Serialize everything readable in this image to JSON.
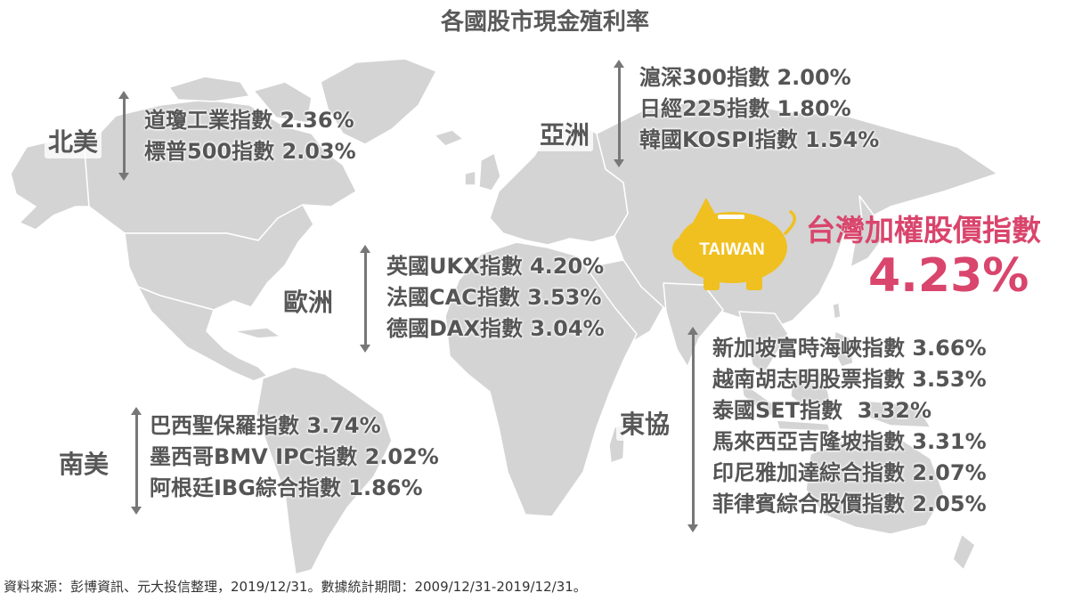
{
  "title": "各國股市現金殖利率",
  "regions": {
    "north_america": {
      "label": "北美",
      "items": [
        {
          "text": "道瓊工業指數 2.36%"
        },
        {
          "text": "標普500指數 2.03%"
        }
      ]
    },
    "asia": {
      "label": "亞洲",
      "items": [
        {
          "text": "滬深300指數 2.00%"
        },
        {
          "text": "日經225指數 1.80%"
        },
        {
          "text": "韓國KOSPI指數 1.54%"
        }
      ]
    },
    "europe": {
      "label": "歐洲",
      "items": [
        {
          "text": "英國UKX指數 4.20%"
        },
        {
          "text": "法國CAC指數 3.53%"
        },
        {
          "text": "德國DAX指數 3.04%"
        }
      ]
    },
    "south_america": {
      "label": "南美",
      "items": [
        {
          "text": "巴西聖保羅指數 3.74%"
        },
        {
          "text": "墨西哥BMV IPC指數 2.02%"
        },
        {
          "text": "阿根廷IBG綜合指數 1.86%"
        }
      ]
    },
    "asean": {
      "label": "東協",
      "items": [
        {
          "text": "新加坡富時海峽指數 3.66%"
        },
        {
          "text": "越南胡志明股票指數 3.53%"
        },
        {
          "text": "泰國SET指數  3.32%"
        },
        {
          "text": "馬來西亞吉隆坡指數 3.31%"
        },
        {
          "text": "印尼雅加達綜合指數 2.07%"
        },
        {
          "text": "菲律賓綜合股價指數 2.05%"
        }
      ]
    }
  },
  "taiwan": {
    "badge": "TAIWAN",
    "name": "台灣加權股價指數",
    "value": "4.23%"
  },
  "source": "資料來源：彭博資訊、元大投信整理，2019/12/31。數據統計期間：2009/12/31-2019/12/31。",
  "colors": {
    "land": "#d4d4d4",
    "land_border": "#ffffff",
    "text": "#555555",
    "accent": "#d9456c",
    "pig": "#f0c021"
  },
  "icons": {
    "pig": "piggy-bank-icon"
  }
}
